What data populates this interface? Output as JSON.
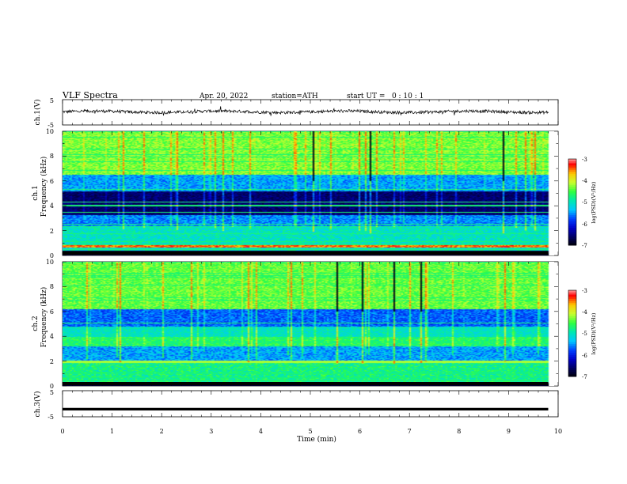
{
  "header": {
    "title": "VLF Spectra",
    "date": "Apr. 20, 2022",
    "station": "station=ATH",
    "start": "start UT =   0 : 10 : 1"
  },
  "chart_data": {
    "type": "heatmap",
    "xlabel": "Time (min)",
    "xlim": [
      0,
      10
    ],
    "x_ticks": [
      "0",
      "1",
      "2",
      "3",
      "4",
      "5",
      "6",
      "7",
      "8",
      "9",
      "10"
    ],
    "data_end_minute": 9.8,
    "panels": [
      {
        "id": "ch1-waveform",
        "kind": "line",
        "ylabel": "ch.1(V)",
        "ylim": [
          -5,
          5
        ],
        "y_ticks": [
          "5",
          "-5"
        ],
        "baseline": 0.2,
        "amplitude": 1.2
      },
      {
        "id": "ch1-spectrogram",
        "kind": "spectrogram",
        "ylabel_top": "ch.1",
        "ylabel": "Frequency (kHz)",
        "ylim": [
          0,
          10
        ],
        "y_ticks": [
          "0",
          "2",
          "4",
          "6",
          "8",
          "10"
        ],
        "colorbar": {
          "label": "log(PSD)(V²/Hz)",
          "range": [
            -7,
            -3
          ],
          "ticks": [
            "-3",
            "-4",
            "-5",
            "-6",
            "-7"
          ]
        }
      },
      {
        "id": "ch2-spectrogram",
        "kind": "spectrogram",
        "ylabel_top": "ch.2",
        "ylabel": "Frequency (kHz)",
        "ylim": [
          0,
          10
        ],
        "y_ticks": [
          "0",
          "2",
          "4",
          "6",
          "8",
          "10"
        ],
        "colorbar": {
          "label": "log(PSD)(V²/Hz)",
          "range": [
            -7,
            -3
          ],
          "ticks": [
            "-3",
            "-4",
            "-5",
            "-6",
            "-7"
          ]
        }
      },
      {
        "id": "ch3-waveform",
        "kind": "line",
        "ylabel": "ch.3(V)",
        "ylim": [
          -5,
          5
        ],
        "y_ticks": [
          "5",
          "-5"
        ],
        "baseline": -2.1,
        "amplitude": 0.0
      }
    ],
    "colormap": [
      "#000000",
      "#000060",
      "#0000c8",
      "#0040ff",
      "#00c8ff",
      "#00e8b0",
      "#30ff40",
      "#c8ff30",
      "#ffc800",
      "#ff0000",
      "#ffffff"
    ]
  }
}
